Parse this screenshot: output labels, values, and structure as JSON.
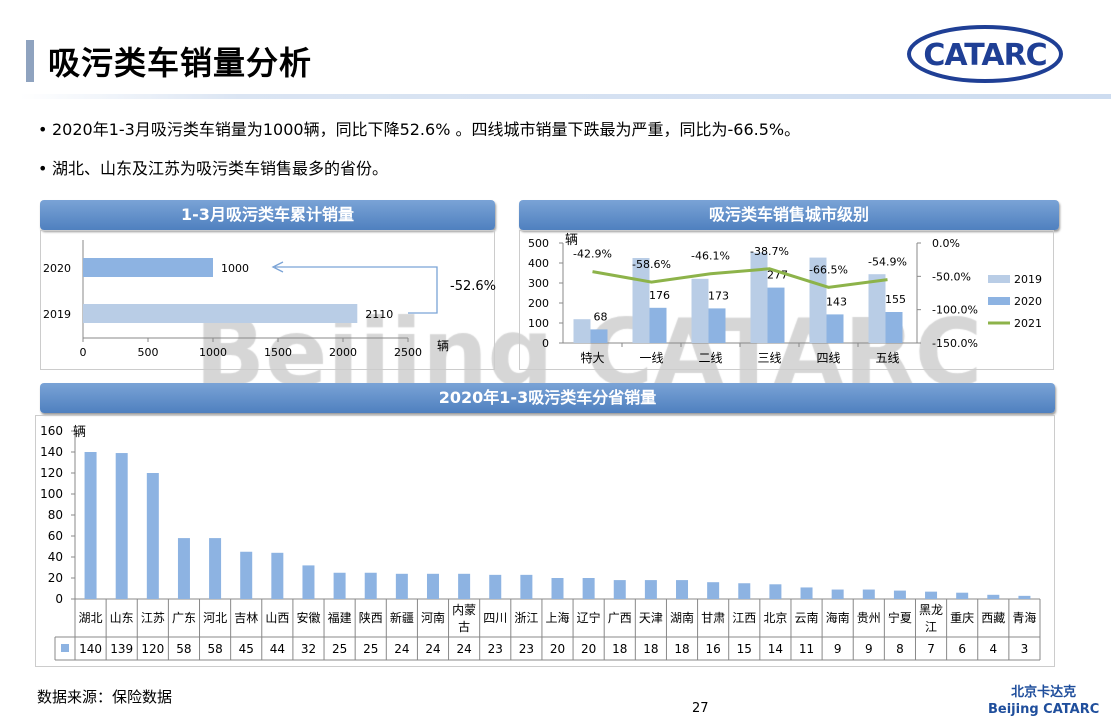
{
  "header": {
    "title": "吸污类车销量分析",
    "logo_text": "CATARC"
  },
  "bullets": [
    "2020年1-3月吸污类车销量为1000辆，同比下降52.6% 。四线城市销量下跌最为严重，同比为-66.5%。",
    "湖北、山东及江苏为吸污类车销售最多的省份。"
  ],
  "watermark": "Beijing CATARC",
  "colors": {
    "bar2019": "#b9cde6",
    "bar2020": "#8db3e2",
    "line2021": "#8db34a",
    "header": "#5b8dcb"
  },
  "chart_data": [
    {
      "type": "bar",
      "orientation": "horizontal",
      "title": "1-3月吸污类车累计销量",
      "categories": [
        "2020",
        "2019"
      ],
      "values": [
        1000,
        2110
      ],
      "xlim": [
        0,
        2500
      ],
      "xticks": [
        0,
        500,
        1000,
        1500,
        2000,
        2500
      ],
      "xlabel": "辆",
      "annotation": "-52.6%"
    },
    {
      "type": "bar",
      "title": "吸污类车销售城市级别",
      "categories": [
        "特大",
        "一线",
        "二线",
        "三线",
        "四线",
        "五线"
      ],
      "ylabel": "辆",
      "ylim": [
        0,
        500
      ],
      "yticks": [
        0,
        100,
        200,
        300,
        400,
        500
      ],
      "y2ticks": [
        "0.0%",
        "-50.0%",
        "-100.0%",
        "-150.0%"
      ],
      "y2lim": [
        -150,
        0
      ],
      "series": [
        {
          "name": "2019",
          "type": "bar",
          "values": [
            119,
            425,
            321,
            452,
            427,
            344
          ]
        },
        {
          "name": "2020",
          "type": "bar",
          "values": [
            68,
            176,
            173,
            277,
            143,
            155
          ],
          "labels": [
            "68",
            "176",
            "173",
            "277",
            "143",
            "155"
          ]
        },
        {
          "name": "2021",
          "type": "line",
          "axis": "right",
          "values": [
            -42.9,
            -58.6,
            -46.1,
            -38.7,
            -66.5,
            -54.9
          ],
          "labels": [
            "-42.9%",
            "-58.6%",
            "-46.1%",
            "-38.7%",
            "-66.5%",
            "-54.9%"
          ]
        }
      ],
      "legend": "right"
    },
    {
      "type": "bar",
      "title": "2020年1-3吸污类车分省销量",
      "ylabel": "辆",
      "ylim": [
        0,
        160
      ],
      "yticks": [
        0,
        20,
        40,
        60,
        80,
        100,
        120,
        140,
        160
      ],
      "categories": [
        "湖北",
        "山东",
        "江苏",
        "广东",
        "河北",
        "吉林",
        "山西",
        "安徽",
        "福建",
        "陕西",
        "新疆",
        "河南",
        "内蒙古",
        "四川",
        "浙江",
        "上海",
        "辽宁",
        "广西",
        "天津",
        "湖南",
        "甘肃",
        "江西",
        "北京",
        "云南",
        "海南",
        "贵州",
        "宁夏",
        "黑龙江",
        "重庆",
        "西藏",
        "青海"
      ],
      "values": [
        140,
        139,
        120,
        58,
        58,
        45,
        44,
        32,
        25,
        25,
        24,
        24,
        24,
        23,
        23,
        20,
        20,
        18,
        18,
        18,
        16,
        15,
        14,
        11,
        9,
        9,
        8,
        7,
        6,
        4,
        3
      ],
      "data_table": true
    }
  ],
  "footer": {
    "source": "数据来源：保险数据",
    "page": "27",
    "brand_cn": "北京卡达克",
    "brand_en": "Beijing CATARC"
  }
}
